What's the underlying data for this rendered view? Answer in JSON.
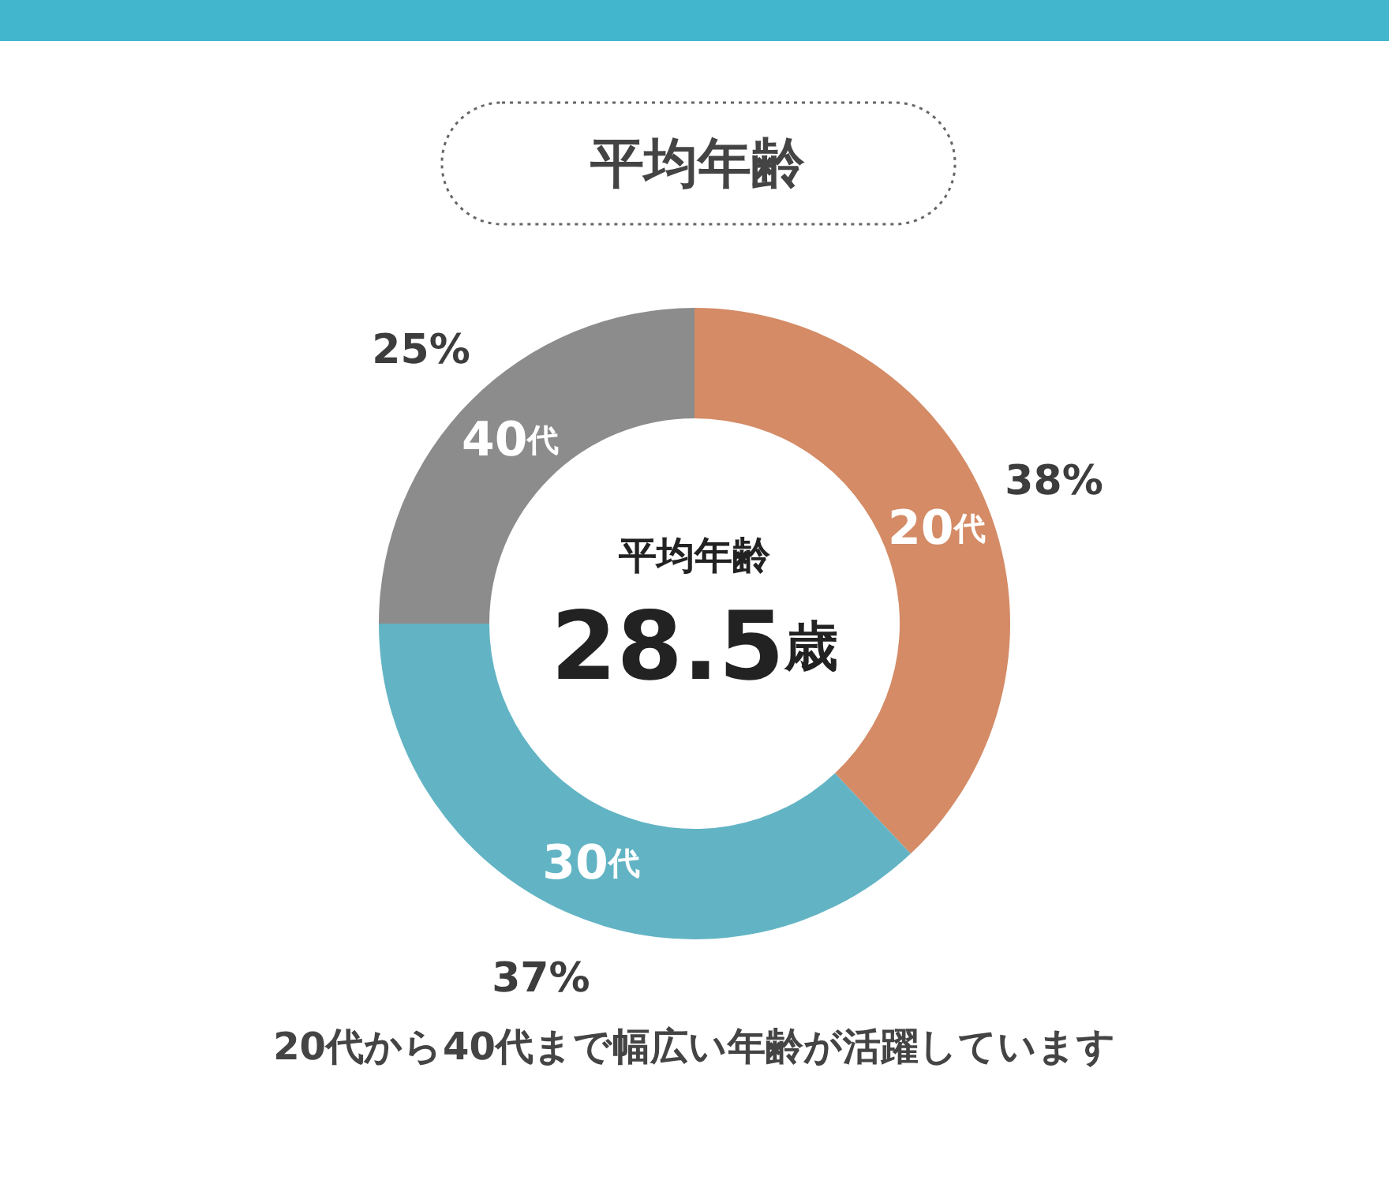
{
  "chart_data": {
    "type": "donut",
    "title": "平均年齢",
    "categories": [
      "20代",
      "30代",
      "40代"
    ],
    "values": [
      38,
      37,
      25
    ],
    "colors": [
      "#d48b66",
      "#62b4c4",
      "#8c8c8c"
    ],
    "value_labels": [
      "38%",
      "37%",
      "25%"
    ],
    "annotations": [
      "平均年齢",
      "28.5歳",
      "20代から40代まで幅広い年齢が活躍しています"
    ]
  }
}
